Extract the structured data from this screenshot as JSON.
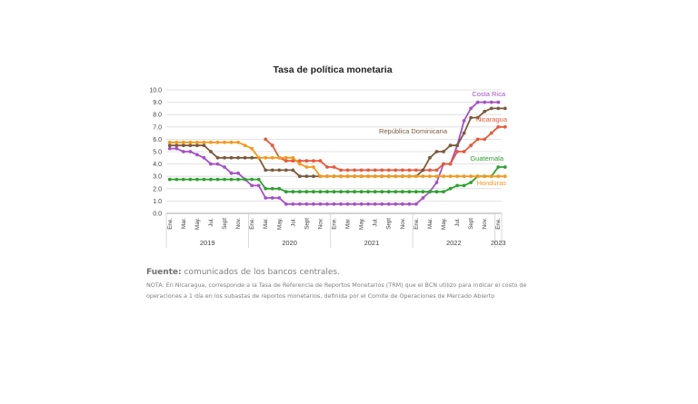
{
  "chart_data": {
    "type": "line",
    "title": "Tasa de política monetaria",
    "ylim": [
      0,
      10
    ],
    "yticks": [
      "0.0",
      "1.0",
      "2.0",
      "3.0",
      "4.0",
      "5.0",
      "6.0",
      "7.0",
      "8.0",
      "9.0",
      "10.0"
    ],
    "month_ticks": [
      "Ene.",
      "Mar.",
      "May.",
      "Jul.",
      "Sept",
      "Nov.",
      "Ene.",
      "Mar.",
      "May.",
      "Jul.",
      "Sept",
      "Nov.",
      "Ene.",
      "Mar.",
      "May.",
      "Jul.",
      "Sept",
      "Nov.",
      "Ene.",
      "Mar.",
      "May.",
      "Jul.",
      "Sept",
      "Nov.",
      "Ene."
    ],
    "years": [
      "2019",
      "2020",
      "2021",
      "2022",
      "2023"
    ],
    "grid": true,
    "series": [
      {
        "name": "Costa Rica",
        "color": "#a550c8",
        "values": [
          5.25,
          5.25,
          5.0,
          5.0,
          4.75,
          4.5,
          4.0,
          4.0,
          3.75,
          3.25,
          3.25,
          2.75,
          2.25,
          2.25,
          1.25,
          1.25,
          1.25,
          0.75,
          0.75,
          0.75,
          0.75,
          0.75,
          0.75,
          0.75,
          0.75,
          0.75,
          0.75,
          0.75,
          0.75,
          0.75,
          0.75,
          0.75,
          0.75,
          0.75,
          0.75,
          0.75,
          0.75,
          1.25,
          1.75,
          2.5,
          4.0,
          4.0,
          5.5,
          7.5,
          8.5,
          9.0,
          9.0,
          9.0,
          9.0
        ]
      },
      {
        "name": "Nicaragua",
        "color": "#e8593a",
        "values": [
          null,
          null,
          null,
          null,
          null,
          null,
          null,
          null,
          null,
          null,
          null,
          null,
          null,
          null,
          6.0,
          5.5,
          4.5,
          4.25,
          4.25,
          4.25,
          4.25,
          4.25,
          4.25,
          3.75,
          3.75,
          3.5,
          3.5,
          3.5,
          3.5,
          3.5,
          3.5,
          3.5,
          3.5,
          3.5,
          3.5,
          3.5,
          3.5,
          3.5,
          3.5,
          3.5,
          4.0,
          4.0,
          5.0,
          5.0,
          5.5,
          6.0,
          6.0,
          6.5,
          7.0,
          7.0
        ]
      },
      {
        "name": "República Dominicana",
        "color": "#7b5a3c",
        "values": [
          5.5,
          5.5,
          5.5,
          5.5,
          5.5,
          5.5,
          5.0,
          4.5,
          4.5,
          4.5,
          4.5,
          4.5,
          4.5,
          4.5,
          3.5,
          3.5,
          3.5,
          3.5,
          3.5,
          3.0,
          3.0,
          3.0,
          3.0,
          3.0,
          3.0,
          3.0,
          3.0,
          3.0,
          3.0,
          3.0,
          3.0,
          3.0,
          3.0,
          3.0,
          3.0,
          3.0,
          3.0,
          3.5,
          4.5,
          5.0,
          5.0,
          5.5,
          5.5,
          6.5,
          7.75,
          7.75,
          8.25,
          8.5,
          8.5,
          8.5
        ]
      },
      {
        "name": "Guatemala",
        "color": "#2ea12e",
        "values": [
          2.75,
          2.75,
          2.75,
          2.75,
          2.75,
          2.75,
          2.75,
          2.75,
          2.75,
          2.75,
          2.75,
          2.75,
          2.75,
          2.75,
          2.0,
          2.0,
          2.0,
          1.75,
          1.75,
          1.75,
          1.75,
          1.75,
          1.75,
          1.75,
          1.75,
          1.75,
          1.75,
          1.75,
          1.75,
          1.75,
          1.75,
          1.75,
          1.75,
          1.75,
          1.75,
          1.75,
          1.75,
          1.75,
          1.75,
          1.75,
          1.75,
          2.0,
          2.25,
          2.25,
          2.5,
          3.0,
          3.0,
          3.0,
          3.75,
          3.75
        ]
      },
      {
        "name": "Honduras",
        "color": "#f39a20",
        "values": [
          5.75,
          5.75,
          5.75,
          5.75,
          5.75,
          5.75,
          5.75,
          5.75,
          5.75,
          5.75,
          5.75,
          5.5,
          5.25,
          4.5,
          4.5,
          4.5,
          4.5,
          4.5,
          4.5,
          4.0,
          3.75,
          3.75,
          3.0,
          3.0,
          3.0,
          3.0,
          3.0,
          3.0,
          3.0,
          3.0,
          3.0,
          3.0,
          3.0,
          3.0,
          3.0,
          3.0,
          3.0,
          3.0,
          3.0,
          3.0,
          3.0,
          3.0,
          3.0,
          3.0,
          3.0,
          3.0,
          3.0,
          3.0,
          3.0,
          3.0
        ]
      }
    ],
    "annotations": [
      "Costa Rica",
      "Nicaragua",
      "República Dominicana",
      "Guatemala",
      "Honduras"
    ]
  },
  "source": {
    "label": "Fuente:",
    "text": " comunicados de los bancos centrales."
  },
  "note": "NOTA: En Nicaragua, corresponde a la Tasa de Referencia de Reportos Monetarios (TRM) que el BCN utilizo para indicar el costo de operaciones a 1 día en los subastas de reportos monetarios, definida por el Comite de Operaciones de Mercado Abierto"
}
